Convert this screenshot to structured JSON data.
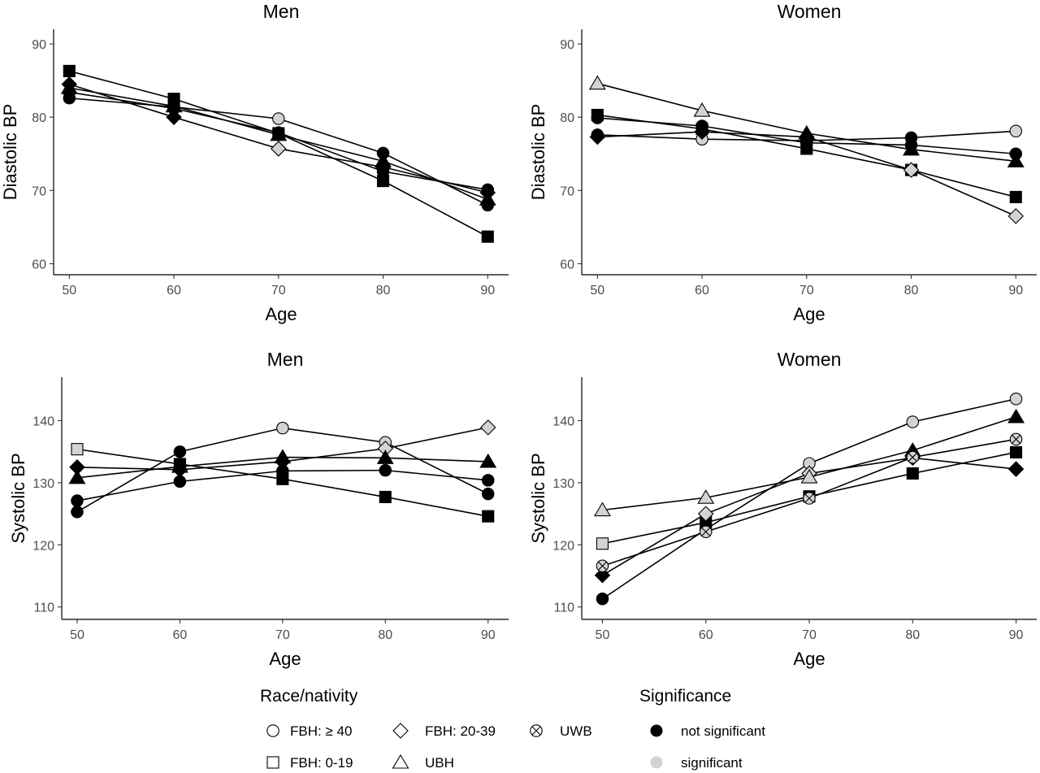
{
  "colors": {
    "not_significant": "#000000",
    "significant": "#d3d3d3",
    "stroke": "#000000"
  },
  "chart_data": [
    {
      "type": "line",
      "title": "Men",
      "xlabel": "Age",
      "ylabel": "Diastolic BP",
      "xlim": [
        48.5,
        92
      ],
      "ylim": [
        58.5,
        92
      ],
      "xticks": [
        50,
        60,
        70,
        80,
        90
      ],
      "yticks": [
        60,
        70,
        80,
        90
      ],
      "grid": false,
      "x": [
        50,
        60,
        70,
        80,
        90
      ],
      "series": [
        {
          "name": "FBH: ≥ 40",
          "shape": "circle",
          "values": [
            82.6,
            81.4,
            79.8,
            75.1,
            68.0
          ],
          "significant": [
            false,
            false,
            true,
            false,
            false
          ]
        },
        {
          "name": "FBH: 0-19",
          "shape": "square",
          "values": [
            86.3,
            82.5,
            77.8,
            71.3,
            63.7
          ],
          "significant": [
            false,
            false,
            false,
            false,
            false
          ]
        },
        {
          "name": "FBH: 20-39",
          "shape": "diamond",
          "values": [
            84.5,
            80.0,
            75.7,
            73.2,
            69.7
          ],
          "significant": [
            false,
            false,
            true,
            false,
            false
          ]
        },
        {
          "name": "UBH",
          "shape": "triangle",
          "values": [
            84.0,
            81.5,
            77.6,
            74.0,
            68.8
          ],
          "significant": [
            false,
            false,
            false,
            false,
            false
          ]
        },
        {
          "name": "UWB",
          "shape": "circlex",
          "values": [
            83.4,
            81.2,
            77.9,
            72.6,
            70.1
          ],
          "significant": [
            false,
            false,
            false,
            false,
            false
          ]
        }
      ]
    },
    {
      "type": "line",
      "title": "Women",
      "xlabel": "Age",
      "ylabel": "Diastolic BP",
      "xlim": [
        48.5,
        92
      ],
      "ylim": [
        58.5,
        92
      ],
      "xticks": [
        50,
        60,
        70,
        80,
        90
      ],
      "yticks": [
        60,
        70,
        80,
        90
      ],
      "grid": false,
      "x": [
        50,
        60,
        70,
        80,
        90
      ],
      "series": [
        {
          "name": "FBH: ≥ 40",
          "shape": "circle",
          "values": [
            77.6,
            77.0,
            76.8,
            77.2,
            78.1
          ],
          "significant": [
            false,
            true,
            false,
            false,
            true
          ]
        },
        {
          "name": "FBH: 0-19",
          "shape": "square",
          "values": [
            80.3,
            78.4,
            75.7,
            72.8,
            69.1
          ],
          "significant": [
            false,
            false,
            false,
            false,
            false
          ]
        },
        {
          "name": "FBH: 20-39",
          "shape": "diamond",
          "values": [
            77.3,
            78.0,
            77.3,
            72.8,
            66.5
          ],
          "significant": [
            false,
            false,
            false,
            true,
            true
          ]
        },
        {
          "name": "UBH",
          "shape": "triangle",
          "values": [
            84.6,
            80.9,
            77.8,
            75.6,
            74.0
          ],
          "significant": [
            true,
            true,
            false,
            false,
            false
          ]
        },
        {
          "name": "UWB",
          "shape": "circlex",
          "values": [
            79.9,
            78.8,
            76.5,
            76.2,
            75.0
          ],
          "significant": [
            false,
            false,
            false,
            false,
            false
          ]
        }
      ]
    },
    {
      "type": "line",
      "title": "Men",
      "xlabel": "Age",
      "ylabel": "Systolic BP",
      "xlim": [
        48.5,
        92
      ],
      "ylim": [
        108,
        147
      ],
      "xticks": [
        50,
        60,
        70,
        80,
        90
      ],
      "yticks": [
        110,
        120,
        130,
        140
      ],
      "grid": false,
      "x": [
        50,
        60,
        70,
        80,
        90
      ],
      "series": [
        {
          "name": "FBH: ≥ 40",
          "shape": "circle",
          "values": [
            125.3,
            135.0,
            138.8,
            136.5,
            128.2
          ],
          "significant": [
            false,
            false,
            true,
            true,
            false
          ]
        },
        {
          "name": "FBH: 0-19",
          "shape": "square",
          "values": [
            135.4,
            133.0,
            130.6,
            127.7,
            124.6
          ],
          "significant": [
            true,
            false,
            false,
            false,
            false
          ]
        },
        {
          "name": "FBH: 20-39",
          "shape": "diamond",
          "values": [
            132.5,
            132.1,
            133.4,
            135.5,
            138.9
          ],
          "significant": [
            false,
            false,
            false,
            true,
            true
          ]
        },
        {
          "name": "UBH",
          "shape": "triangle",
          "values": [
            130.8,
            132.6,
            134.1,
            134.0,
            133.4
          ],
          "significant": [
            false,
            false,
            false,
            false,
            false
          ]
        },
        {
          "name": "UWB",
          "shape": "circlex",
          "values": [
            127.1,
            130.2,
            131.9,
            132.0,
            130.4
          ],
          "significant": [
            false,
            false,
            false,
            false,
            false
          ]
        }
      ]
    },
    {
      "type": "line",
      "title": "Women",
      "xlabel": "Age",
      "ylabel": "Systolic BP",
      "xlim": [
        48,
        92
      ],
      "ylim": [
        108,
        147
      ],
      "xticks": [
        50,
        60,
        70,
        80,
        90
      ],
      "yticks": [
        110,
        120,
        130,
        140
      ],
      "grid": false,
      "x": [
        50,
        60,
        70,
        80,
        90
      ],
      "series": [
        {
          "name": "FBH: ≥ 40",
          "shape": "circle",
          "values": [
            111.3,
            122.5,
            133.1,
            139.8,
            143.5
          ],
          "significant": [
            false,
            false,
            true,
            true,
            true
          ]
        },
        {
          "name": "FBH: 0-19",
          "shape": "square",
          "values": [
            120.2,
            123.6,
            127.8,
            131.5,
            134.9
          ],
          "significant": [
            true,
            false,
            false,
            false,
            false
          ]
        },
        {
          "name": "FBH: 20-39",
          "shape": "diamond",
          "values": [
            115.1,
            125.0,
            131.5,
            134.0,
            132.2
          ],
          "significant": [
            false,
            true,
            true,
            false,
            false
          ]
        },
        {
          "name": "UBH",
          "shape": "triangle",
          "values": [
            125.6,
            127.6,
            130.9,
            135.2,
            140.6
          ],
          "significant": [
            true,
            true,
            true,
            false,
            false
          ]
        },
        {
          "name": "UWB",
          "shape": "circlex",
          "values": [
            116.6,
            122.1,
            127.5,
            134.1,
            137.0
          ],
          "significant": [
            true,
            true,
            true,
            true,
            true
          ]
        }
      ]
    }
  ],
  "legend": {
    "race_title": "Race/nativity",
    "race_items": [
      {
        "shape": "circle",
        "label": "FBH: ≥ 40"
      },
      {
        "shape": "diamond",
        "label": "FBH: 20-39"
      },
      {
        "shape": "circlex",
        "label": "UWB"
      },
      {
        "shape": "square",
        "label": "FBH: 0-19"
      },
      {
        "shape": "triangle",
        "label": "UBH"
      }
    ],
    "sig_title": "Significance",
    "sig_items": [
      {
        "key": "not_significant",
        "label": "not significant"
      },
      {
        "key": "significant",
        "label": "significant"
      }
    ]
  }
}
